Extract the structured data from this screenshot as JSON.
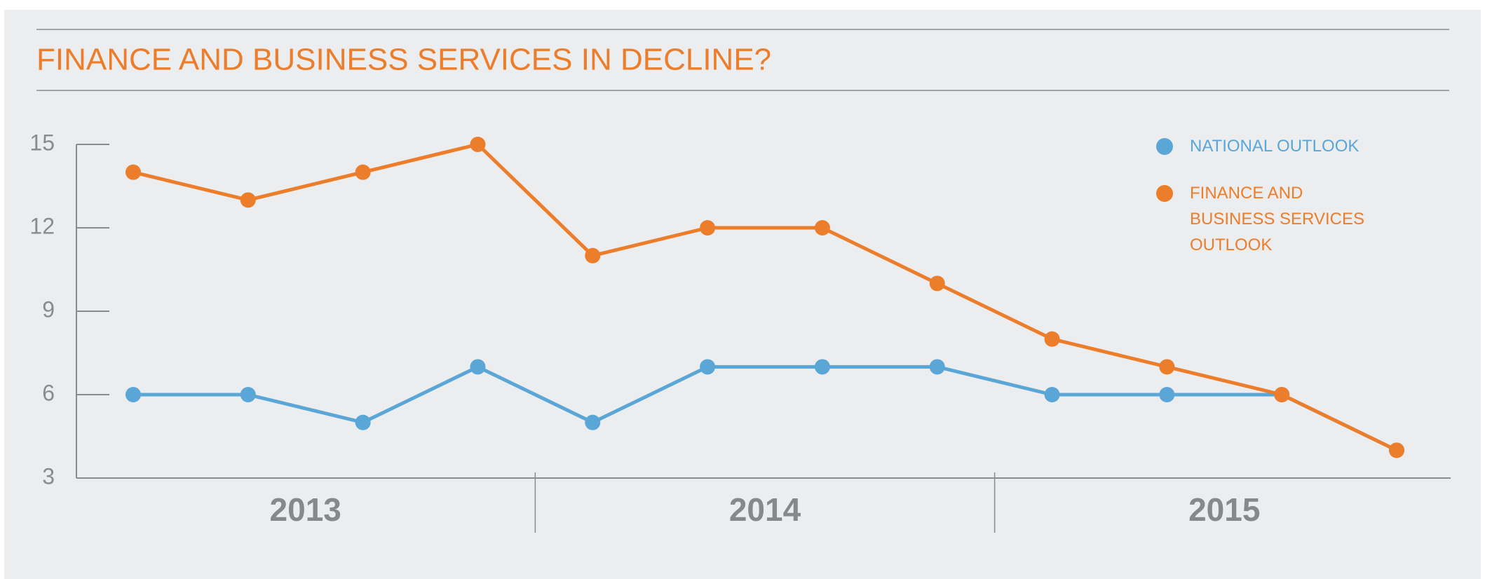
{
  "chart_data": {
    "type": "line",
    "title": "FINANCE AND BUSINESS SERVICES IN DECLINE?",
    "categories": [
      null,
      null,
      null,
      null,
      null,
      null,
      null,
      null,
      null,
      null,
      null,
      null
    ],
    "category_groups": [
      "2013",
      "2014",
      "2015"
    ],
    "series": [
      {
        "name": "NATIONAL OUTLOOK",
        "color": "#5aa6d6",
        "values": [
          6,
          6,
          5,
          7,
          5,
          7,
          7,
          7,
          6,
          6,
          6,
          4
        ]
      },
      {
        "name": "FINANCE AND BUSINESS SERVICES OUTLOOK",
        "color": "#ec7d2a",
        "values": [
          14,
          13,
          14,
          15,
          11,
          12,
          12,
          10,
          8,
          7,
          6,
          4
        ]
      }
    ],
    "ylim": [
      3,
      15
    ],
    "yticks": [
      3,
      6,
      9,
      12,
      15
    ],
    "legend": "top-right"
  }
}
